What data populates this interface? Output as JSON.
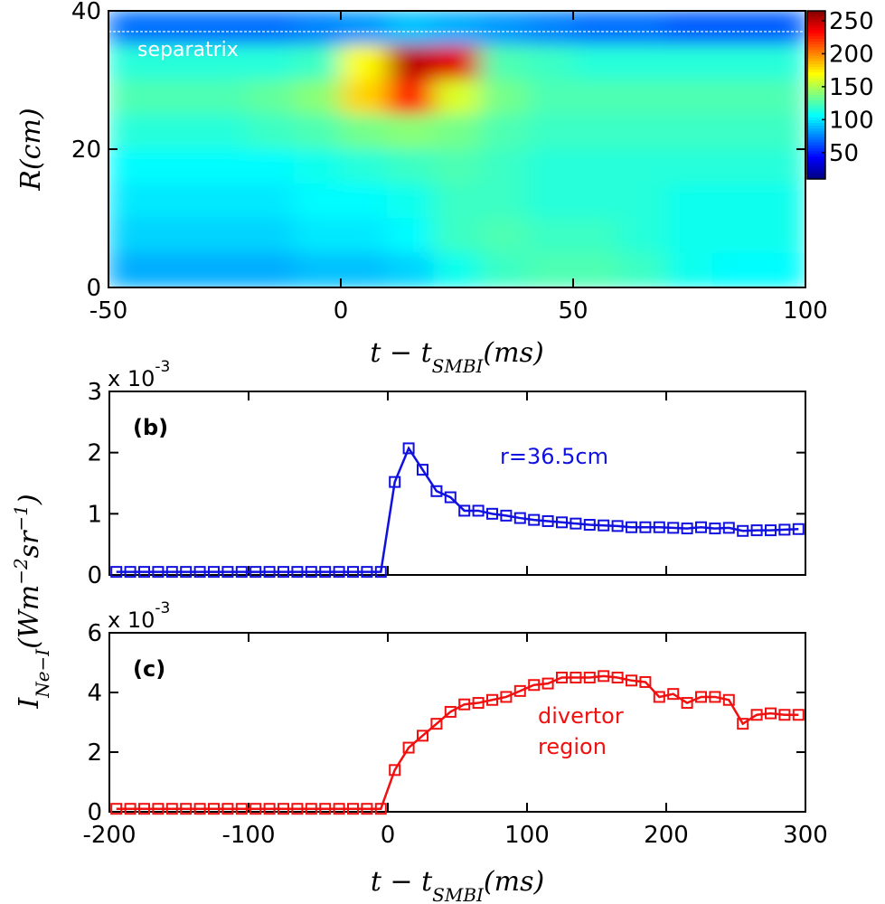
{
  "chart_data": [
    {
      "type": "heatmap",
      "x": [
        -45,
        -35,
        -25,
        -15,
        -5,
        5,
        15,
        25,
        35,
        45,
        55,
        65,
        75,
        85,
        95
      ],
      "y": [
        37.5,
        32.5,
        27.5,
        22.5,
        17.5,
        12.5,
        7.5,
        2.5
      ],
      "z": [
        [
          70,
          70,
          70,
          70,
          75,
          80,
          90,
          85,
          80,
          75,
          70,
          70,
          65,
          65,
          65
        ],
        [
          115,
          115,
          115,
          115,
          120,
          170,
          250,
          240,
          125,
          120,
          115,
          115,
          115,
          115,
          115
        ],
        [
          125,
          125,
          125,
          130,
          140,
          180,
          230,
          160,
          135,
          125,
          125,
          125,
          125,
          125,
          125
        ],
        [
          115,
          115,
          115,
          120,
          125,
          135,
          140,
          135,
          125,
          120,
          120,
          120,
          120,
          120,
          120
        ],
        [
          105,
          105,
          105,
          105,
          110,
          115,
          120,
          125,
          120,
          115,
          115,
          115,
          115,
          115,
          115
        ],
        [
          100,
          100,
          100,
          100,
          105,
          105,
          110,
          120,
          120,
          115,
          115,
          115,
          110,
          110,
          110
        ],
        [
          95,
          95,
          95,
          95,
          100,
          100,
          105,
          120,
          125,
          120,
          120,
          115,
          110,
          110,
          110
        ],
        [
          85,
          85,
          85,
          85,
          90,
          90,
          95,
          110,
          120,
          125,
          125,
          120,
          110,
          105,
          105
        ]
      ],
      "xlim": [
        -50,
        100
      ],
      "xticks": [
        -50,
        0,
        50,
        100
      ],
      "ylim": [
        0,
        40
      ],
      "yticks": [
        0,
        20,
        40
      ],
      "clim": [
        10,
        265
      ],
      "cticks": [
        50,
        100,
        150,
        200,
        250
      ],
      "colormap": "jet",
      "separatrix": 37,
      "annotation": "separatrix",
      "xlabel": [
        "t − t",
        "SMBI",
        "(ms)"
      ],
      "ylabel": "R(cm)"
    },
    {
      "type": "line",
      "panel_label": "(b)",
      "annotation": "r=36.5cm",
      "x": [
        -195,
        -185,
        -175,
        -165,
        -155,
        -145,
        -135,
        -125,
        -115,
        -105,
        -95,
        -85,
        -75,
        -65,
        -55,
        -45,
        -35,
        -25,
        -15,
        -5,
        5,
        15,
        25,
        35,
        45,
        55,
        65,
        75,
        85,
        95,
        105,
        115,
        125,
        135,
        145,
        155,
        165,
        175,
        185,
        195,
        205,
        215,
        225,
        235,
        245,
        255,
        265,
        275,
        285,
        295
      ],
      "series": [
        {
          "color": "#1010e0",
          "values": [
            0.05,
            0.05,
            0.05,
            0.05,
            0.05,
            0.05,
            0.05,
            0.05,
            0.05,
            0.05,
            0.05,
            0.05,
            0.05,
            0.05,
            0.05,
            0.05,
            0.05,
            0.05,
            0.05,
            0.05,
            1.52,
            2.07,
            1.72,
            1.37,
            1.27,
            1.05,
            1.05,
            1.0,
            0.97,
            0.93,
            0.9,
            0.88,
            0.86,
            0.84,
            0.82,
            0.81,
            0.8,
            0.78,
            0.78,
            0.78,
            0.77,
            0.76,
            0.78,
            0.76,
            0.77,
            0.72,
            0.73,
            0.73,
            0.74,
            0.75
          ]
        }
      ],
      "xlim": [
        -200,
        300
      ],
      "xticks": [
        -200,
        -100,
        0,
        100,
        200,
        300
      ],
      "ylim": [
        0,
        3
      ],
      "yticks": [
        0,
        1,
        2,
        3
      ],
      "y_multiplier": "x 10",
      "y_multiplier_exp": "-3",
      "ylabel": [
        "I",
        "Ne−I",
        "(Wm",
        "−2",
        "sr",
        "−1",
        ")"
      ]
    },
    {
      "type": "line",
      "panel_label": "(c)",
      "annotation": [
        "divertor",
        "region"
      ],
      "x": [
        -195,
        -185,
        -175,
        -165,
        -155,
        -145,
        -135,
        -125,
        -115,
        -105,
        -95,
        -85,
        -75,
        -65,
        -55,
        -45,
        -35,
        -25,
        -15,
        -5,
        5,
        15,
        25,
        35,
        45,
        55,
        65,
        75,
        85,
        95,
        105,
        115,
        125,
        135,
        145,
        155,
        165,
        175,
        185,
        195,
        205,
        215,
        225,
        235,
        245,
        255,
        265,
        275,
        285,
        295
      ],
      "series": [
        {
          "color": "#f01010",
          "values": [
            0.1,
            0.1,
            0.1,
            0.1,
            0.1,
            0.1,
            0.1,
            0.1,
            0.1,
            0.1,
            0.1,
            0.1,
            0.1,
            0.1,
            0.1,
            0.1,
            0.1,
            0.1,
            0.1,
            0.1,
            1.4,
            2.15,
            2.55,
            2.95,
            3.35,
            3.6,
            3.65,
            3.75,
            3.85,
            4.05,
            4.25,
            4.3,
            4.5,
            4.5,
            4.5,
            4.55,
            4.5,
            4.4,
            4.35,
            3.85,
            3.95,
            3.65,
            3.85,
            3.85,
            3.75,
            2.95,
            3.25,
            3.3,
            3.25,
            3.25
          ]
        }
      ],
      "xlim": [
        -200,
        300
      ],
      "xticks": [
        -200,
        -100,
        0,
        100,
        200,
        300
      ],
      "ylim": [
        0,
        6
      ],
      "yticks": [
        0,
        2,
        4,
        6
      ],
      "y_multiplier": "x 10",
      "y_multiplier_exp": "-3",
      "xlabel": [
        "t − t",
        "SMBI",
        "(ms)"
      ]
    }
  ]
}
